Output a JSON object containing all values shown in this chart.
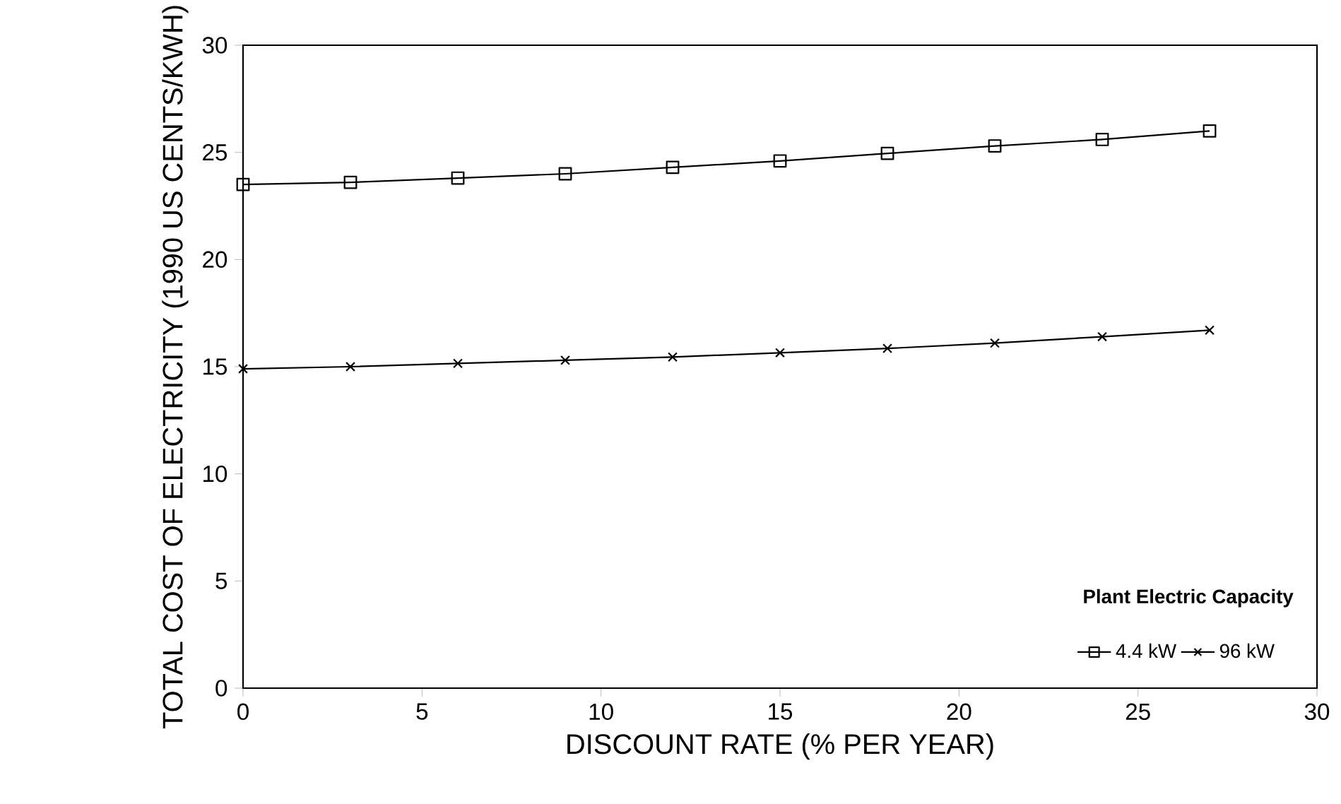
{
  "chart_data": {
    "type": "line",
    "xlabel": "DISCOUNT RATE (% PER YEAR)",
    "ylabel": "TOTAL COST OF ELECTRICITY (1990 US CENTS/KWH)",
    "legend_title": "Plant Electric Capacity",
    "x": [
      0,
      3,
      6,
      9,
      12,
      15,
      18,
      21,
      24,
      27
    ],
    "series": [
      {
        "name": "4.4 kW",
        "color": "#000000",
        "marker": "square",
        "values": [
          23.5,
          23.6,
          23.8,
          24.0,
          24.3,
          24.6,
          24.95,
          25.3,
          25.6,
          26.0
        ]
      },
      {
        "name": "96 kW",
        "color": "#000000",
        "marker": "cross",
        "values": [
          14.9,
          15.0,
          15.15,
          15.3,
          15.45,
          15.65,
          15.85,
          16.1,
          16.4,
          16.7
        ]
      }
    ],
    "xlim": [
      0,
      30
    ],
    "xticks": [
      0,
      5,
      10,
      15,
      20,
      25,
      30
    ],
    "ylim": [
      0,
      30
    ],
    "yticks": [
      0,
      5,
      10,
      15,
      20,
      25,
      30
    ],
    "grid": false,
    "legend": "bottom right",
    "line_style": "solid"
  }
}
